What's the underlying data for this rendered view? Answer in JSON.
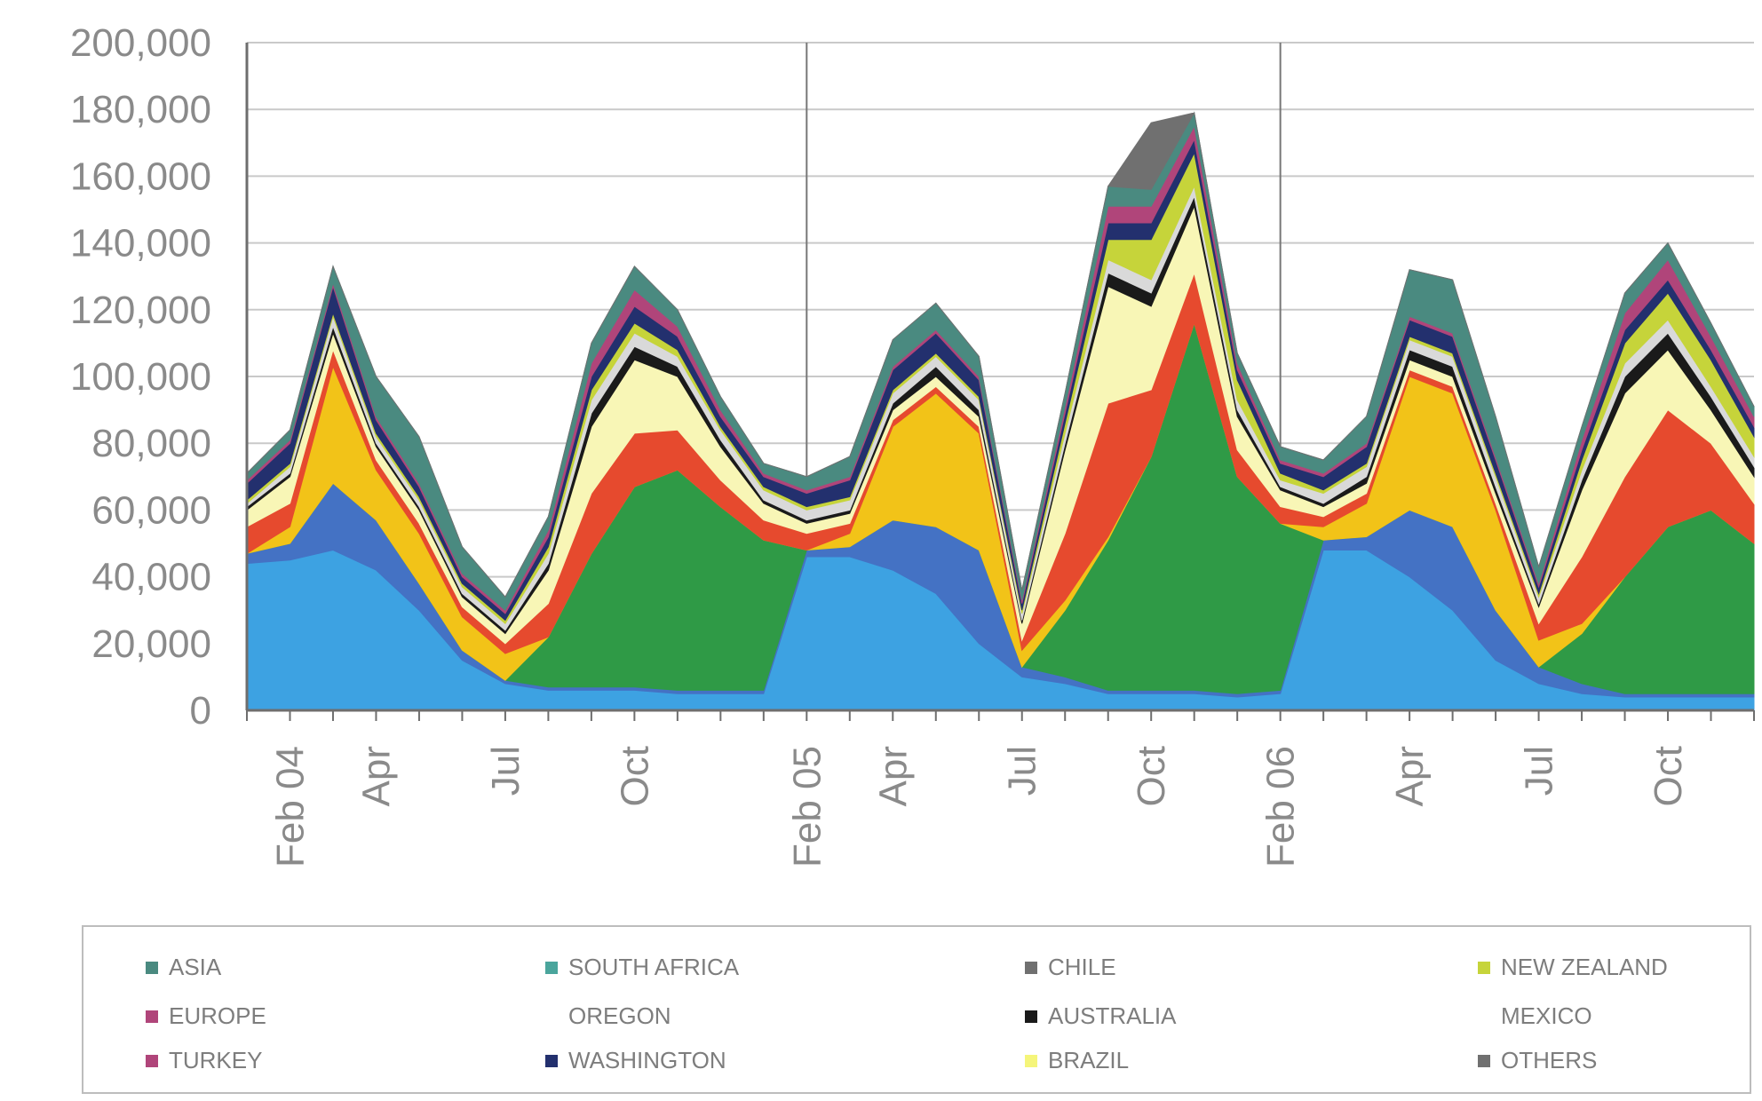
{
  "chart_data": {
    "type": "area",
    "title": "",
    "xlabel": "",
    "ylabel": "",
    "ylim": [
      0,
      200000
    ],
    "yticks": [
      "0",
      "20,000",
      "40,000",
      "60,000",
      "80,000",
      "100,000",
      "120,000",
      "140,000",
      "160,000",
      "180,000",
      "200,000"
    ],
    "x_tick_labels": [
      "Feb 04",
      "Apr",
      "Jul",
      "Oct",
      "Feb 05",
      "Apr",
      "Jul",
      "Oct",
      "Feb 06",
      "Apr",
      "Jul",
      "Oct"
    ],
    "grid": true,
    "legend_position": "bottom",
    "x": [
      "Jan 04",
      "Feb 04",
      "Mar 04",
      "Apr 04",
      "May 04",
      "Jun 04",
      "Jul 04",
      "Aug 04",
      "Sep 04",
      "Oct 04",
      "Nov 04",
      "Dec 04",
      "Jan 05",
      "Feb 05",
      "Mar 05",
      "Apr 05",
      "May 05",
      "Jun 05",
      "Jul 05",
      "Aug 05",
      "Sep 05",
      "Oct 05",
      "Nov 05",
      "Dec 05",
      "Jan 06",
      "Feb 06",
      "Mar 06",
      "Apr 06",
      "May 06",
      "Jun 06",
      "Jul 06",
      "Aug 06",
      "Sep 06",
      "Oct 06",
      "Nov 06",
      "Dec 06"
    ],
    "series": [
      {
        "name": "",
        "color": "#3da2e2",
        "values": [
          44000,
          45000,
          48000,
          42000,
          30000,
          15000,
          8000,
          6000,
          6000,
          6000,
          5000,
          5000,
          5000,
          46000,
          46000,
          42000,
          35000,
          20000,
          10000,
          8000,
          5000,
          5000,
          5000,
          4000,
          5000,
          48000,
          48000,
          40000,
          30000,
          15000,
          8000,
          5000,
          4000,
          4000,
          4000,
          4000
        ]
      },
      {
        "name": "",
        "color": "#4472c4",
        "values": [
          3000,
          5000,
          20000,
          15000,
          8000,
          3000,
          1000,
          1000,
          1000,
          1000,
          1000,
          1000,
          1000,
          2000,
          3000,
          15000,
          20000,
          28000,
          3000,
          2000,
          1000,
          1000,
          1000,
          1000,
          1000,
          3000,
          4000,
          20000,
          25000,
          15000,
          5000,
          3000,
          1000,
          1000,
          1000,
          1000
        ]
      },
      {
        "name": "",
        "color": "#2f9a46",
        "values": [
          0,
          0,
          0,
          0,
          0,
          0,
          0,
          15000,
          40000,
          60000,
          66000,
          55000,
          45000,
          0,
          0,
          0,
          0,
          0,
          0,
          20000,
          45000,
          70000,
          110000,
          65000,
          50000,
          0,
          0,
          0,
          0,
          0,
          0,
          15000,
          35000,
          50000,
          55000,
          45000
        ]
      },
      {
        "name": "",
        "color": "#f2c318",
        "values": [
          0,
          5000,
          35000,
          15000,
          15000,
          10000,
          8000,
          0,
          0,
          0,
          0,
          0,
          0,
          0,
          4000,
          28000,
          40000,
          35000,
          5000,
          3000,
          1000,
          0,
          0,
          0,
          0,
          4000,
          10000,
          40000,
          40000,
          30000,
          8000,
          3000,
          0,
          0,
          0,
          0
        ]
      },
      {
        "name": "",
        "color": "#e64a2e",
        "values": [
          8000,
          7000,
          5000,
          3000,
          3000,
          3000,
          3000,
          10000,
          18000,
          16000,
          12000,
          8000,
          6000,
          5000,
          3000,
          2000,
          2000,
          2000,
          3000,
          20000,
          40000,
          20000,
          15000,
          8000,
          5000,
          3000,
          3000,
          2000,
          2000,
          2000,
          5000,
          20000,
          30000,
          35000,
          20000,
          12000
        ]
      },
      {
        "name": "",
        "color": "#f8f6b6",
        "values": [
          5000,
          8000,
          5000,
          4000,
          4000,
          3000,
          3000,
          10000,
          20000,
          22000,
          16000,
          10000,
          5000,
          3000,
          3000,
          3000,
          3000,
          3000,
          5000,
          25000,
          35000,
          25000,
          20000,
          10000,
          5000,
          3000,
          3000,
          3000,
          3000,
          3000,
          5000,
          20000,
          25000,
          18000,
          10000,
          8000
        ]
      },
      {
        "name": "",
        "color": "#1a1a1a",
        "values": [
          1000,
          1000,
          2000,
          1000,
          1000,
          1000,
          1000,
          2000,
          4000,
          4000,
          3000,
          2000,
          1000,
          1000,
          1000,
          2000,
          3000,
          2000,
          1000,
          2000,
          4000,
          4000,
          3000,
          2000,
          1000,
          1000,
          2000,
          3000,
          3000,
          2000,
          1000,
          3000,
          5000,
          5000,
          4000,
          3000
        ]
      },
      {
        "name": "",
        "color": "#d9d9d9",
        "values": [
          1000,
          2000,
          3000,
          2000,
          2000,
          2000,
          2000,
          3000,
          4000,
          4000,
          3000,
          3000,
          3000,
          3000,
          3000,
          3000,
          3000,
          3000,
          2000,
          3000,
          4000,
          4000,
          3000,
          3000,
          2000,
          3000,
          3000,
          3000,
          3000,
          3000,
          2000,
          3000,
          4000,
          4000,
          3000,
          3000
        ]
      },
      {
        "name": "",
        "color": "#c6d43a",
        "values": [
          1000,
          1000,
          1000,
          1000,
          1000,
          1000,
          1000,
          2000,
          3000,
          3000,
          2000,
          1000,
          1000,
          1000,
          1000,
          1000,
          1000,
          1000,
          1000,
          3000,
          6000,
          12000,
          10000,
          6000,
          2000,
          1000,
          1000,
          1000,
          1000,
          1000,
          1000,
          3000,
          6000,
          8000,
          8000,
          6000
        ]
      },
      {
        "name": "",
        "color": "#23306e",
        "values": [
          5000,
          6000,
          8000,
          4000,
          3000,
          2000,
          2000,
          3000,
          4000,
          5000,
          4000,
          3000,
          3000,
          4000,
          5000,
          6000,
          6000,
          5000,
          2000,
          3000,
          5000,
          5000,
          4000,
          3000,
          3000,
          4000,
          5000,
          5000,
          5000,
          4000,
          2000,
          3000,
          4000,
          4000,
          3000,
          3000
        ]
      },
      {
        "name": "",
        "color": "#b0457a",
        "values": [
          1000,
          1000,
          1000,
          1000,
          1000,
          1000,
          1000,
          2000,
          4000,
          5000,
          3000,
          2000,
          1000,
          1000,
          1000,
          1000,
          1000,
          1000,
          1000,
          2000,
          5000,
          5000,
          4000,
          2000,
          1000,
          1000,
          1000,
          1000,
          1000,
          1000,
          1000,
          3000,
          5000,
          6000,
          4000,
          3000
        ]
      },
      {
        "name": "",
        "color": "#4a8a80",
        "values": [
          2000,
          3000,
          5000,
          12000,
          14000,
          8000,
          4000,
          4000,
          6000,
          7000,
          5000,
          4000,
          3000,
          4000,
          6000,
          8000,
          8000,
          6000,
          3000,
          4000,
          6000,
          5000,
          4000,
          3000,
          4000,
          4000,
          8000,
          14000,
          16000,
          12000,
          5000,
          4000,
          6000,
          5000,
          4000,
          3000
        ]
      },
      {
        "name": "",
        "color": "#707070",
        "values": [
          0,
          0,
          0,
          0,
          0,
          0,
          0,
          0,
          0,
          0,
          0,
          0,
          0,
          0,
          0,
          0,
          0,
          0,
          0,
          0,
          0,
          20000,
          0,
          0,
          0,
          0,
          0,
          0,
          0,
          0,
          0,
          0,
          0,
          0,
          0,
          0
        ]
      }
    ]
  },
  "legend": {
    "items": [
      {
        "label": "ASIA",
        "color": "#4a8a80"
      },
      {
        "label": "SOUTH AFRICA",
        "color": "#4aa59c"
      },
      {
        "label": "CHILE",
        "color": "#707070"
      },
      {
        "label": "NEW ZEALAND",
        "color": "#c6d43a"
      },
      {
        "label": "EUROPE",
        "color": "#b0457a"
      },
      {
        "label": "OREGON",
        "color": "#ffffff"
      },
      {
        "label": "AUSTRALIA",
        "color": "#1a1a1a"
      },
      {
        "label": "MEXICO",
        "color": "#ffffff"
      },
      {
        "label": "TURKEY",
        "color": "#b0457a"
      },
      {
        "label": "WASHINGTON",
        "color": "#23306e"
      },
      {
        "label": "BRAZIL",
        "color": "#f5f57a"
      },
      {
        "label": "OTHERS",
        "color": "#707070"
      }
    ]
  }
}
